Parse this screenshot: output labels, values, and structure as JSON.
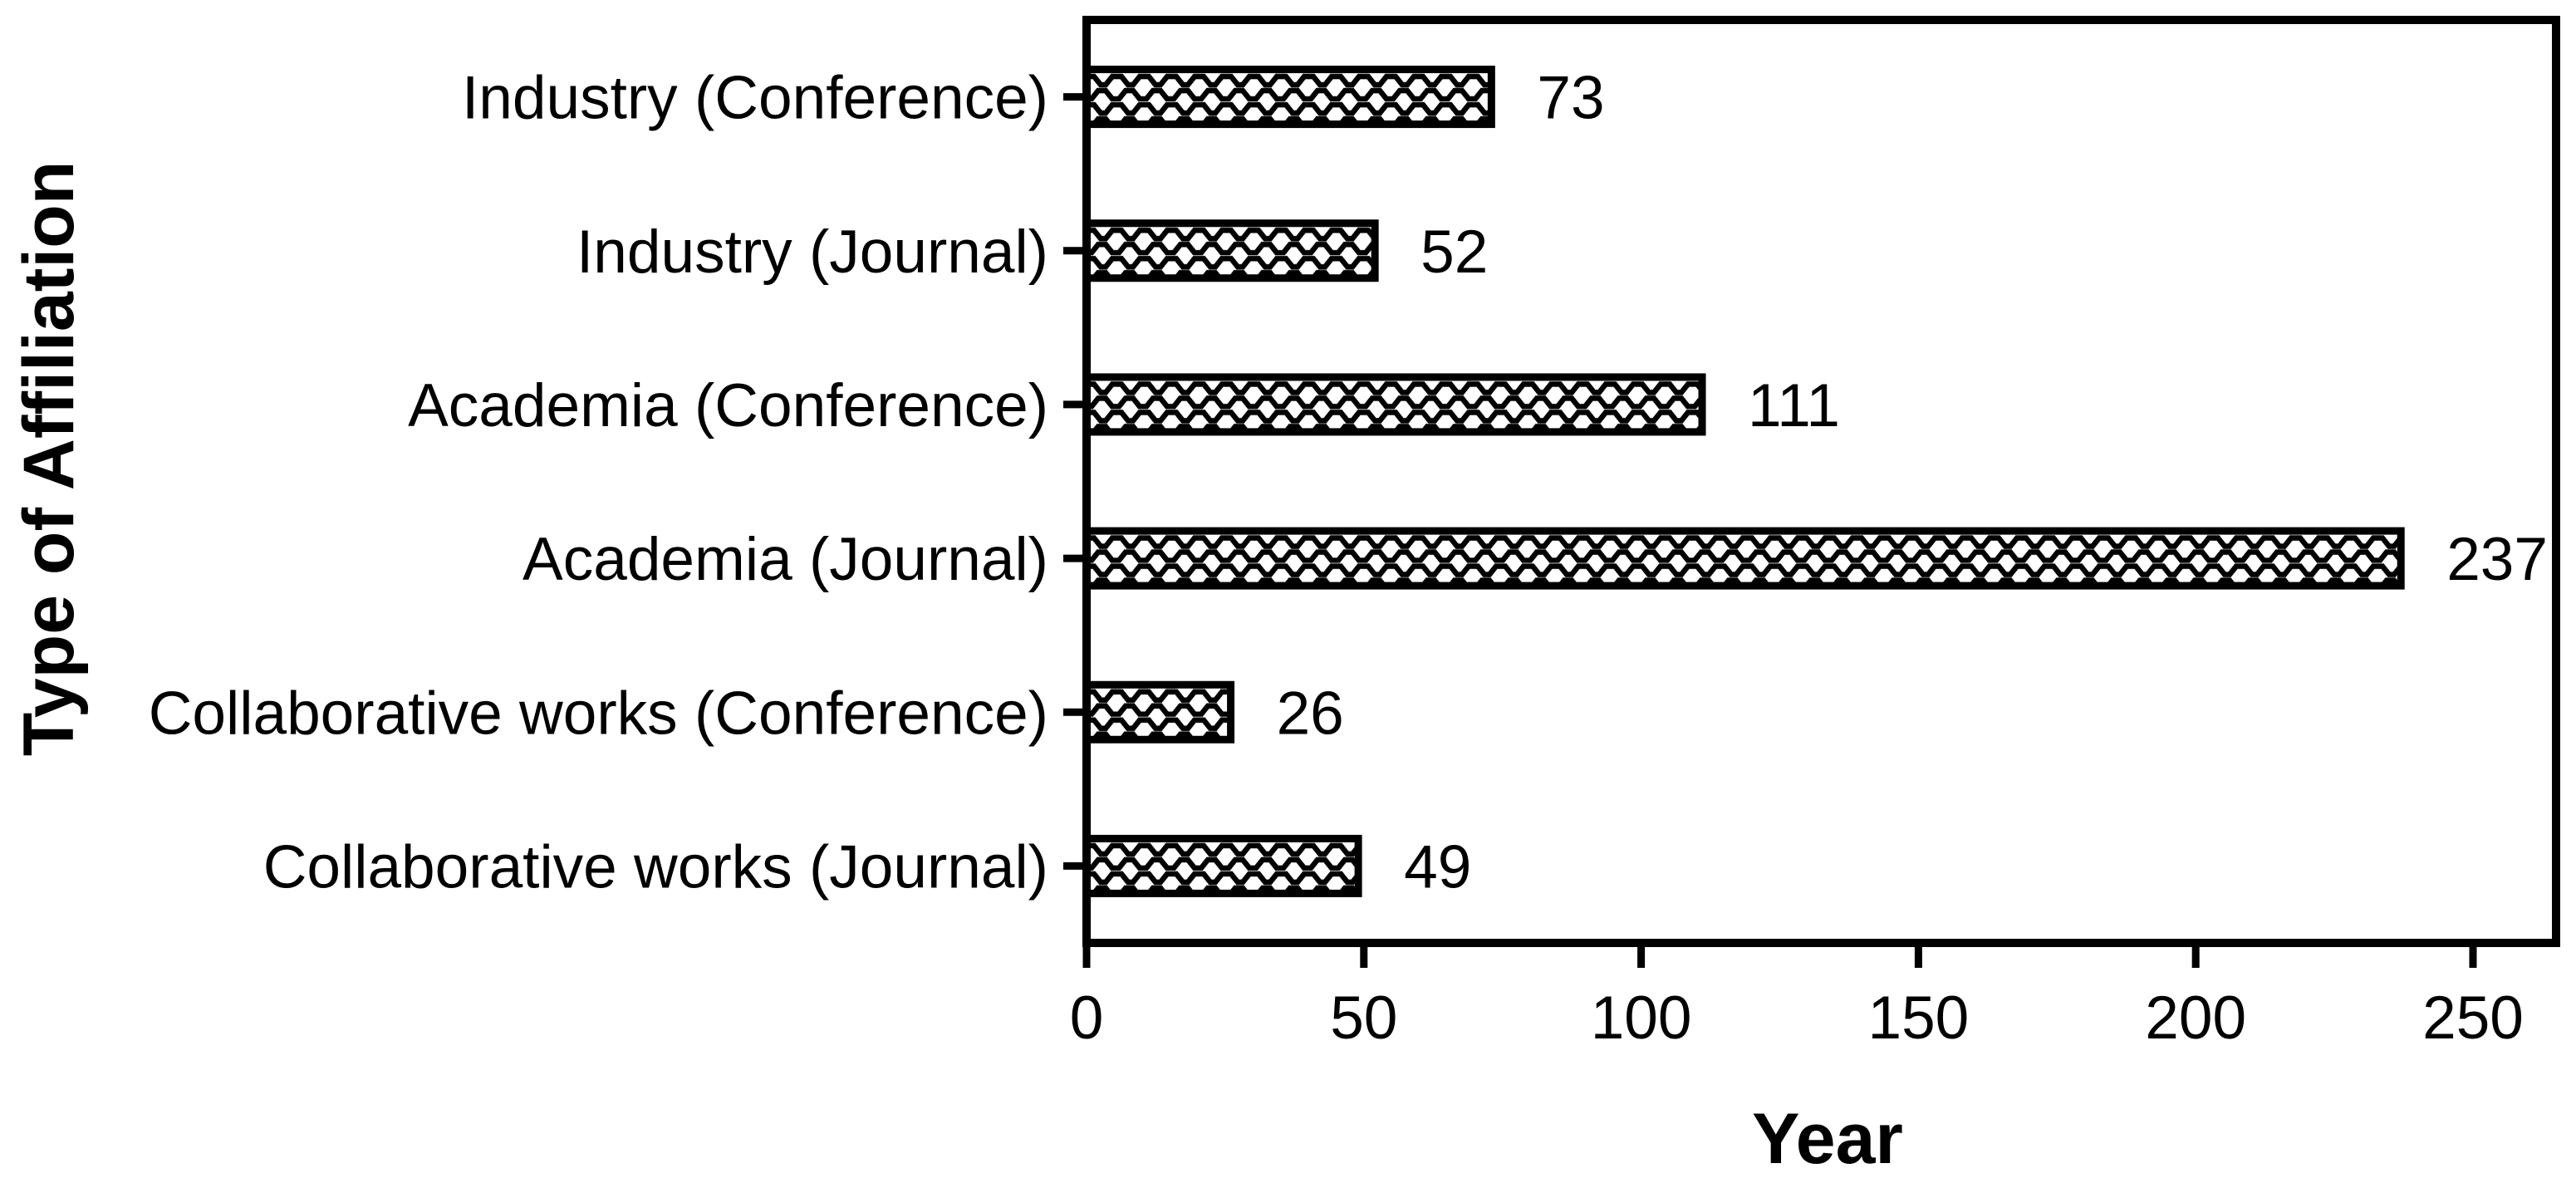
{
  "chart_data": {
    "type": "bar",
    "orientation": "horizontal",
    "title": "",
    "xlabel": "Year",
    "ylabel": "Type of Affiliation",
    "categories": [
      "Industry (Conference)",
      "Industry (Journal)",
      "Academia (Conference)",
      "Academia (Journal)",
      "Collaborative works (Conference)",
      "Collaborative works (Journal)"
    ],
    "values": [
      73,
      52,
      111,
      237,
      26,
      49
    ],
    "value_labels": [
      "73",
      "52",
      "111",
      "237",
      "26",
      "49"
    ],
    "xticks": [
      0,
      50,
      100,
      150,
      200,
      250
    ],
    "xtick_labels": [
      "0",
      "50",
      "100",
      "150",
      "200",
      "250"
    ],
    "xlim": [
      0,
      265
    ],
    "grid": false,
    "legend": null,
    "bar_fill_pattern": "black-wave-hatch-on-white",
    "bar_border_color": "#000000",
    "frame_color": "#000000",
    "text_color": "#000000",
    "background_color": "#ffffff"
  }
}
